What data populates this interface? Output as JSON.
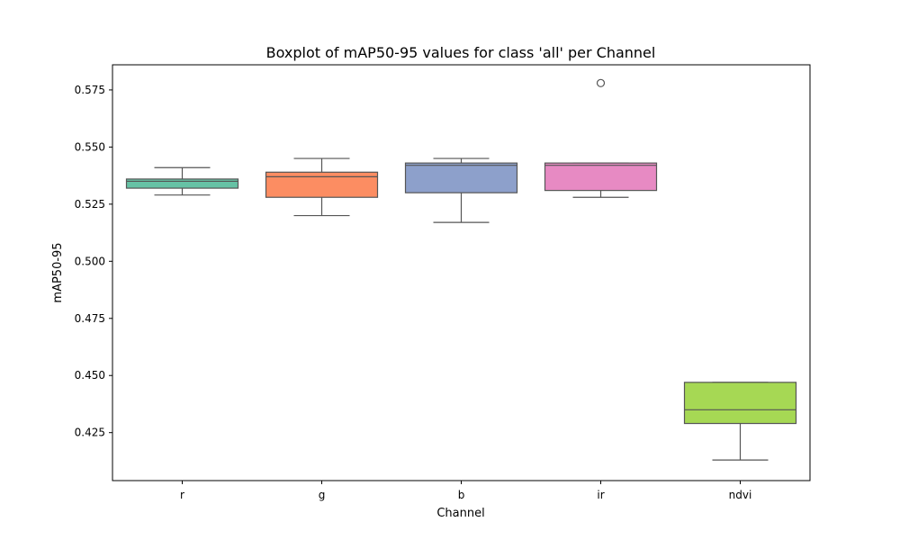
{
  "chart_data": {
    "type": "box",
    "title": "Boxplot of mAP50-95 values for class 'all' per Channel",
    "xlabel": "Channel",
    "ylabel": "mAP50-95",
    "ylim": [
      0.404,
      0.586
    ],
    "yticks": [
      0.425,
      0.45,
      0.475,
      0.5,
      0.525,
      0.55,
      0.575
    ],
    "ytick_labels": [
      "0.425",
      "0.450",
      "0.475",
      "0.500",
      "0.525",
      "0.550",
      "0.575"
    ],
    "grid": false,
    "categories": [
      "r",
      "g",
      "b",
      "ir",
      "ndvi"
    ],
    "boxes": [
      {
        "category": "r",
        "whisker_low": 0.529,
        "q1": 0.532,
        "median": 0.535,
        "q3": 0.536,
        "whisker_high": 0.541,
        "outliers": [],
        "color": "#66c2a5"
      },
      {
        "category": "g",
        "whisker_low": 0.52,
        "q1": 0.528,
        "median": 0.537,
        "q3": 0.539,
        "whisker_high": 0.545,
        "outliers": [],
        "color": "#fc8d62"
      },
      {
        "category": "b",
        "whisker_low": 0.517,
        "q1": 0.53,
        "median": 0.542,
        "q3": 0.543,
        "whisker_high": 0.545,
        "outliers": [],
        "color": "#8da0cb"
      },
      {
        "category": "ir",
        "whisker_low": 0.528,
        "q1": 0.531,
        "median": 0.542,
        "q3": 0.543,
        "whisker_high": 0.543,
        "outliers": [
          0.578
        ],
        "color": "#e78ac3"
      },
      {
        "category": "ndvi",
        "whisker_low": 0.413,
        "q1": 0.429,
        "median": 0.435,
        "q3": 0.447,
        "whisker_high": 0.447,
        "outliers": [],
        "color": "#a6d854"
      }
    ],
    "line_color": "#555555"
  }
}
